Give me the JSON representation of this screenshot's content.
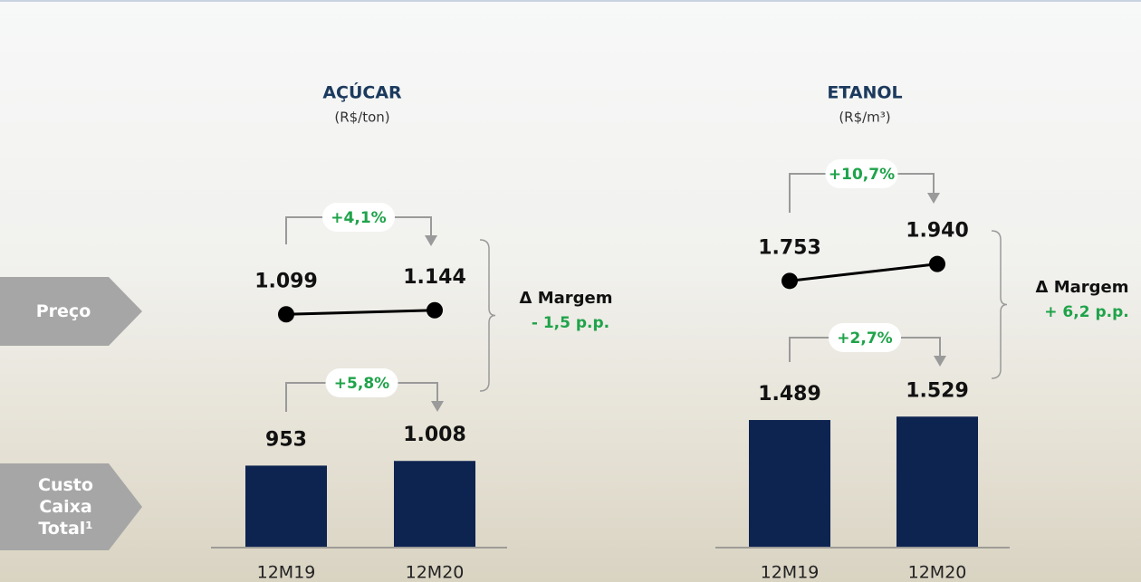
{
  "row_labels": [
    "Preço",
    "Custo Caixa Total¹"
  ],
  "chart_data": [
    {
      "type": "combo",
      "title": "AÇÚCAR",
      "subtitle": "(R$/ton)",
      "categories": [
        "12M19",
        "12M20"
      ],
      "series": [
        {
          "type": "line",
          "color": "#000000",
          "values": [
            1099,
            1144
          ],
          "value_labels": [
            "1.099",
            "1.144"
          ]
        },
        {
          "type": "bar",
          "color": "#0d2350",
          "values": [
            953,
            1008
          ],
          "value_labels": [
            "953",
            "1.008"
          ]
        }
      ],
      "price_change": "+4,1%",
      "cost_change": "+5,8%",
      "margin_label": "Δ Margem",
      "margin_change": "- 1,5 p.p."
    },
    {
      "type": "combo",
      "title": "ETANOL",
      "subtitle": "(R$/m³)",
      "categories": [
        "12M19",
        "12M20"
      ],
      "series": [
        {
          "type": "line",
          "color": "#000000",
          "values": [
            1753,
            1940
          ],
          "value_labels": [
            "1.753",
            "1.940"
          ]
        },
        {
          "type": "bar",
          "color": "#0d2350",
          "values": [
            1489,
            1529
          ],
          "value_labels": [
            "1.489",
            "1.529"
          ]
        }
      ],
      "price_change": "+10,7%",
      "cost_change": "+2,7%",
      "margin_label": "Δ Margem",
      "margin_change": "+ 6,2 p.p."
    }
  ]
}
